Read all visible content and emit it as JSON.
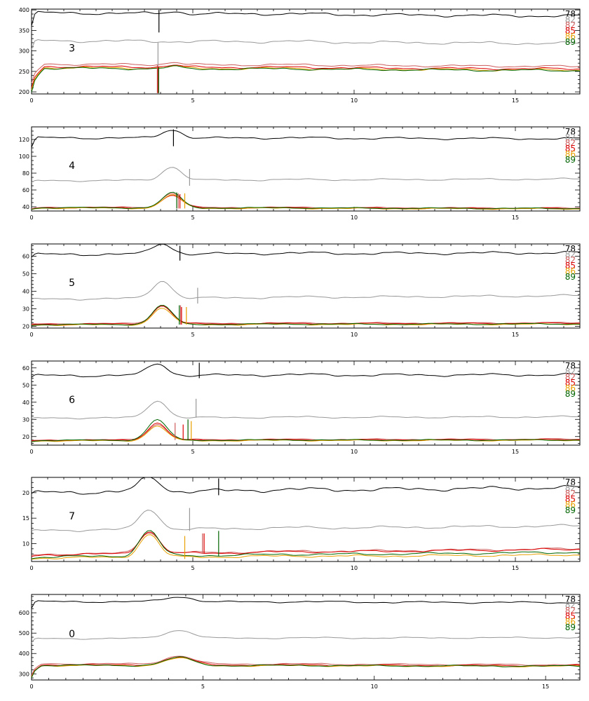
{
  "chart_data": [
    {
      "type": "line",
      "panel_label": "3",
      "xlim": [
        0,
        17
      ],
      "ylim": [
        195,
        402
      ],
      "x_ticks": [
        0,
        5,
        10,
        15
      ],
      "x_minor_step": 0.5,
      "y_ticks": [
        200,
        250,
        300,
        350,
        400
      ],
      "y_minor_step": 10,
      "legend": [
        "78",
        "82",
        "82",
        "85",
        "86",
        "89"
      ],
      "peak": {
        "x": 4.4,
        "w": 0.2,
        "h": 0
      },
      "series": [
        {
          "name": "78",
          "color": "#000000",
          "start": 360,
          "rise": 0.15,
          "level": 393,
          "level_end": 385,
          "amp": 4,
          "phase": 0.3,
          "peak_h": 6
        },
        {
          "name": "82",
          "color": "#999999",
          "start": 300,
          "rise": 0.15,
          "level": 325,
          "level_end": 318,
          "amp": 4,
          "phase": 1.1,
          "peak_h": 0
        },
        {
          "name": "82",
          "color": "#cd5c5c",
          "start": 220,
          "rise": 0.4,
          "level": 268,
          "level_end": 262,
          "amp": 3,
          "phase": 2.0,
          "peak_h": 6
        },
        {
          "name": "85",
          "color": "#dd0000",
          "start": 210,
          "rise": 0.4,
          "level": 262,
          "level_end": 256,
          "amp": 3,
          "phase": 2.6,
          "peak_h": 5
        },
        {
          "name": "86",
          "color": "#e8a000",
          "start": 205,
          "rise": 0.4,
          "level": 259,
          "level_end": 253,
          "amp": 3,
          "phase": 3.2,
          "peak_h": 5
        },
        {
          "name": "89",
          "color": "#006400",
          "start": 200,
          "rise": 0.4,
          "level": 258,
          "level_end": 252,
          "amp": 3,
          "phase": 3.9,
          "peak_h": 5
        }
      ],
      "markers": [
        {
          "color": "#000000",
          "x": 3.95,
          "y1": 400,
          "y2": 345
        },
        {
          "color": "#999999",
          "x": 3.92,
          "y1": 320,
          "y2": 260
        },
        {
          "color": "#cd5c5c",
          "x": 3.9,
          "y1": 265,
          "y2": 197
        },
        {
          "color": "#dd0000",
          "x": 3.92,
          "y1": 262,
          "y2": 197
        },
        {
          "color": "#006400",
          "x": 3.94,
          "y1": 260,
          "y2": 197
        }
      ]
    },
    {
      "type": "line",
      "panel_label": "4",
      "xlim": [
        0,
        17
      ],
      "ylim": [
        35,
        135
      ],
      "x_ticks": [
        0,
        5,
        10,
        15
      ],
      "x_minor_step": 0.5,
      "y_ticks": [
        40,
        60,
        80,
        100,
        120
      ],
      "y_minor_step": 5,
      "legend": [
        "78",
        "82",
        "82",
        "85",
        "86",
        "89"
      ],
      "peak": {
        "x": 4.35,
        "w": 0.3,
        "h": 0
      },
      "series": [
        {
          "name": "78",
          "color": "#000000",
          "start": 110,
          "rise": 0.2,
          "level": 122,
          "level_end": 121,
          "amp": 1.5,
          "phase": 0.4,
          "peak_h": 10
        },
        {
          "name": "82",
          "color": "#999999",
          "start": 68,
          "rise": 0.2,
          "level": 71,
          "level_end": 73,
          "amp": 1.2,
          "phase": 1.3,
          "peak_h": 16
        },
        {
          "name": "82",
          "color": "#cd5c5c",
          "start": 37,
          "rise": 0.3,
          "level": 39.5,
          "level_end": 38.5,
          "amp": 0.8,
          "phase": 2.1,
          "peak_h": 17
        },
        {
          "name": "85",
          "color": "#dd0000",
          "start": 37,
          "rise": 0.3,
          "level": 39,
          "level_end": 38,
          "amp": 0.8,
          "phase": 2.8,
          "peak_h": 15
        },
        {
          "name": "86",
          "color": "#e8a000",
          "start": 37,
          "rise": 0.3,
          "level": 38.5,
          "level_end": 37.5,
          "amp": 0.8,
          "phase": 3.4,
          "peak_h": 16
        },
        {
          "name": "89",
          "color": "#006400",
          "start": 37,
          "rise": 0.3,
          "level": 39,
          "level_end": 38,
          "amp": 0.8,
          "phase": 4.0,
          "peak_h": 18
        }
      ],
      "markers": [
        {
          "color": "#000000",
          "x": 4.4,
          "y1": 132,
          "y2": 112
        },
        {
          "color": "#999999",
          "x": 4.9,
          "y1": 85,
          "y2": 65
        },
        {
          "color": "#cd5c5c",
          "x": 4.55,
          "y1": 56,
          "y2": 38
        },
        {
          "color": "#dd0000",
          "x": 4.6,
          "y1": 55,
          "y2": 38
        },
        {
          "color": "#e8a000",
          "x": 4.75,
          "y1": 56,
          "y2": 38
        },
        {
          "color": "#006400",
          "x": 4.5,
          "y1": 57,
          "y2": 38
        }
      ]
    },
    {
      "type": "line",
      "panel_label": "5",
      "xlim": [
        0,
        17
      ],
      "ylim": [
        19,
        67
      ],
      "x_ticks": [
        0,
        5,
        10,
        15
      ],
      "x_minor_step": 0.5,
      "y_ticks": [
        20,
        30,
        40,
        50,
        60
      ],
      "y_minor_step": 2,
      "legend": [
        "78",
        "82",
        "82",
        "85",
        "86",
        "89"
      ],
      "peak": {
        "x": 4.05,
        "w": 0.3,
        "h": 0
      },
      "series": [
        {
          "name": "78",
          "color": "#000000",
          "start": 59,
          "rise": 0.2,
          "level": 61,
          "level_end": 62,
          "amp": 0.9,
          "phase": 0.5,
          "peak_h": 6
        },
        {
          "name": "82",
          "color": "#999999",
          "start": 35,
          "rise": 0.2,
          "level": 35.5,
          "level_end": 37.5,
          "amp": 0.7,
          "phase": 1.2,
          "peak_h": 10
        },
        {
          "name": "82",
          "color": "#cd5c5c",
          "start": 21,
          "rise": 0.3,
          "level": 21.5,
          "level_end": 22,
          "amp": 0.4,
          "phase": 2.0,
          "peak_h": 10
        },
        {
          "name": "85",
          "color": "#dd0000",
          "start": 21,
          "rise": 0.3,
          "level": 21.2,
          "level_end": 21.8,
          "amp": 0.4,
          "phase": 2.7,
          "peak_h": 10.5
        },
        {
          "name": "86",
          "color": "#e8a000",
          "start": 20.5,
          "rise": 0.3,
          "level": 20.8,
          "level_end": 21.2,
          "amp": 0.4,
          "phase": 3.3,
          "peak_h": 9.5
        },
        {
          "name": "89",
          "color": "#006400",
          "start": 20.5,
          "rise": 0.3,
          "level": 21,
          "level_end": 21.4,
          "amp": 0.4,
          "phase": 4.1,
          "peak_h": 11
        }
      ],
      "markers": [
        {
          "color": "#000000",
          "x": 4.6,
          "y1": 66,
          "y2": 57.5
        },
        {
          "color": "#999999",
          "x": 5.15,
          "y1": 42,
          "y2": 33
        },
        {
          "color": "#cd5c5c",
          "x": 4.62,
          "y1": 32,
          "y2": 21
        },
        {
          "color": "#dd0000",
          "x": 4.65,
          "y1": 31,
          "y2": 21
        },
        {
          "color": "#e8a000",
          "x": 4.8,
          "y1": 31,
          "y2": 21
        },
        {
          "color": "#006400",
          "x": 4.58,
          "y1": 32,
          "y2": 21
        }
      ]
    },
    {
      "type": "line",
      "panel_label": "6",
      "xlim": [
        0,
        17
      ],
      "ylim": [
        15,
        64
      ],
      "x_ticks": [
        0,
        5,
        10,
        15
      ],
      "x_minor_step": 0.5,
      "y_ticks": [
        20,
        30,
        40,
        50,
        60
      ],
      "y_minor_step": 2,
      "legend": [
        "78",
        "82",
        "82",
        "85",
        "86",
        "89"
      ],
      "peak": {
        "x": 3.9,
        "w": 0.3,
        "h": 0
      },
      "series": [
        {
          "name": "78",
          "color": "#000000",
          "start": 54,
          "rise": 0.2,
          "level": 55.5,
          "level_end": 56,
          "amp": 0.9,
          "phase": 0.6,
          "peak_h": 7
        },
        {
          "name": "82",
          "color": "#999999",
          "start": 30,
          "rise": 0.2,
          "level": 30.8,
          "level_end": 31.5,
          "amp": 0.6,
          "phase": 1.4,
          "peak_h": 10
        },
        {
          "name": "82",
          "color": "#cd5c5c",
          "start": 17.5,
          "rise": 0.3,
          "level": 18,
          "level_end": 18.5,
          "amp": 0.4,
          "phase": 2.2,
          "peak_h": 9
        },
        {
          "name": "85",
          "color": "#dd0000",
          "start": 17.5,
          "rise": 0.3,
          "level": 17.8,
          "level_end": 18.2,
          "amp": 0.4,
          "phase": 2.9,
          "peak_h": 10
        },
        {
          "name": "86",
          "color": "#e8a000",
          "start": 17,
          "rise": 0.3,
          "level": 17.5,
          "level_end": 17.8,
          "amp": 0.4,
          "phase": 3.6,
          "peak_h": 8.5
        },
        {
          "name": "89",
          "color": "#006400",
          "start": 17,
          "rise": 0.3,
          "level": 17.8,
          "level_end": 18,
          "amp": 0.4,
          "phase": 4.2,
          "peak_h": 12
        }
      ],
      "markers": [
        {
          "color": "#000000",
          "x": 5.2,
          "y1": 63,
          "y2": 54
        },
        {
          "color": "#999999",
          "x": 5.1,
          "y1": 42,
          "y2": 31
        },
        {
          "color": "#cd5c5c",
          "x": 4.45,
          "y1": 28,
          "y2": 18
        },
        {
          "color": "#dd0000",
          "x": 4.7,
          "y1": 27,
          "y2": 18
        },
        {
          "color": "#e8a000",
          "x": 4.95,
          "y1": 29,
          "y2": 18
        },
        {
          "color": "#006400",
          "x": 4.85,
          "y1": 30,
          "y2": 18
        }
      ]
    },
    {
      "type": "line",
      "panel_label": "7",
      "xlim": [
        0,
        17
      ],
      "ylim": [
        6.5,
        23
      ],
      "x_ticks": [
        0,
        5,
        10,
        15
      ],
      "x_minor_step": 0.5,
      "y_ticks": [
        10,
        15,
        20
      ],
      "y_minor_step": 1,
      "legend": [
        "78",
        "82",
        "82",
        "85",
        "86",
        "89"
      ],
      "peak": {
        "x": 3.65,
        "w": 0.3,
        "h": 0
      },
      "series": [
        {
          "name": "78",
          "color": "#000000",
          "start": 19.5,
          "rise": 0.2,
          "level": 20,
          "level_end": 21,
          "amp": 0.45,
          "phase": 0.7,
          "peak_h": 3
        },
        {
          "name": "82",
          "color": "#999999",
          "start": 12.3,
          "rise": 0.2,
          "level": 12.6,
          "level_end": 13.5,
          "amp": 0.3,
          "phase": 1.5,
          "peak_h": 4
        },
        {
          "name": "82",
          "color": "#cd5c5c",
          "start": 7.6,
          "rise": 0.3,
          "level": 7.9,
          "level_end": 9,
          "amp": 0.25,
          "phase": 2.3,
          "peak_h": 4.2
        },
        {
          "name": "85",
          "color": "#dd0000",
          "start": 7.5,
          "rise": 0.3,
          "level": 7.8,
          "level_end": 8.9,
          "amp": 0.25,
          "phase": 3.0,
          "peak_h": 4.4
        },
        {
          "name": "86",
          "color": "#e8a000",
          "start": 7.0,
          "rise": 0.3,
          "level": 7.2,
          "level_end": 7.8,
          "amp": 0.25,
          "phase": 3.7,
          "peak_h": 4.5
        },
        {
          "name": "89",
          "color": "#006400",
          "start": 7.1,
          "rise": 0.3,
          "level": 7.4,
          "level_end": 8.3,
          "amp": 0.25,
          "phase": 4.4,
          "peak_h": 5
        }
      ],
      "markers": [
        {
          "color": "#000000",
          "x": 5.8,
          "y1": 22.8,
          "y2": 19.5
        },
        {
          "color": "#999999",
          "x": 4.9,
          "y1": 17,
          "y2": 12.5
        },
        {
          "color": "#cd5c5c",
          "x": 5.3,
          "y1": 12,
          "y2": 8
        },
        {
          "color": "#dd0000",
          "x": 5.35,
          "y1": 12,
          "y2": 8
        },
        {
          "color": "#e8a000",
          "x": 4.75,
          "y1": 11.5,
          "y2": 7
        },
        {
          "color": "#006400",
          "x": 5.8,
          "y1": 12.5,
          "y2": 7.5
        }
      ]
    },
    {
      "type": "line",
      "panel_label": "0",
      "xlim": [
        0,
        16
      ],
      "ylim": [
        270,
        690
      ],
      "x_ticks": [
        0,
        5,
        10,
        15
      ],
      "x_minor_step": 0.5,
      "y_ticks": [
        300,
        400,
        500,
        600
      ],
      "y_minor_step": 20,
      "legend": [
        "78",
        "82",
        "82",
        "85",
        "86",
        "89"
      ],
      "peak": {
        "x": 4.3,
        "w": 0.45,
        "h": 0
      },
      "series": [
        {
          "name": "78",
          "color": "#000000",
          "start": 620,
          "rise": 0.15,
          "level": 655,
          "level_end": 650,
          "amp": 5,
          "phase": 0.4,
          "peak_h": 25
        },
        {
          "name": "82",
          "color": "#999999",
          "start": 450,
          "rise": 0.15,
          "level": 473,
          "level_end": 478,
          "amp": 4,
          "phase": 1.2,
          "peak_h": 40
        },
        {
          "name": "82",
          "color": "#cd5c5c",
          "start": 290,
          "rise": 0.3,
          "level": 350,
          "level_end": 345,
          "amp": 4,
          "phase": 2.1,
          "peak_h": 40
        },
        {
          "name": "85",
          "color": "#dd0000",
          "start": 285,
          "rise": 0.3,
          "level": 344,
          "level_end": 340,
          "amp": 4,
          "phase": 2.8,
          "peak_h": 40
        },
        {
          "name": "86",
          "color": "#e8a000",
          "start": 285,
          "rise": 0.3,
          "level": 341,
          "level_end": 337,
          "amp": 4,
          "phase": 3.5,
          "peak_h": 38
        },
        {
          "name": "89",
          "color": "#006400",
          "start": 282,
          "rise": 0.3,
          "level": 342,
          "level_end": 338,
          "amp": 4,
          "phase": 4.2,
          "peak_h": 40
        }
      ],
      "markers": []
    }
  ]
}
